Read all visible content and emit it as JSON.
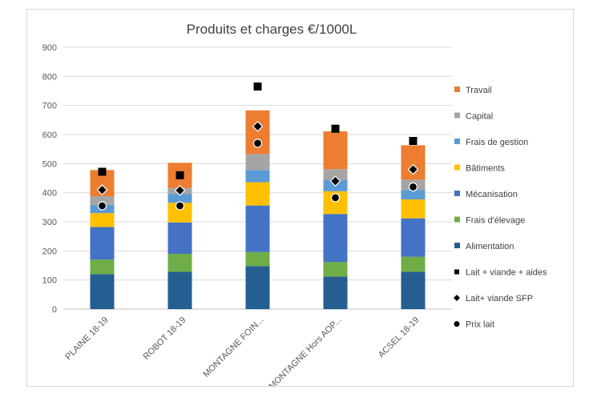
{
  "chart_data": {
    "type": "bar",
    "stacked": true,
    "title": "Produits et charges €/1000L",
    "xlabel": "",
    "ylabel": "",
    "ylim": [
      0,
      900
    ],
    "yticks": [
      0,
      100,
      200,
      300,
      400,
      500,
      600,
      700,
      800,
      900
    ],
    "grid": true,
    "legend_position": "right",
    "categories": [
      "PLAINE   18-19",
      "ROBOT 18-19",
      "MONTAGNE FOIN...",
      "MONTAGNE Hors AOP...",
      "ACSEL 18-19"
    ],
    "series": [
      {
        "name": "Alimentation",
        "color": "#255e91",
        "values": [
          120,
          128,
          148,
          112,
          128
        ]
      },
      {
        "name": "Frais d'élevage",
        "color": "#70ad47",
        "values": [
          50,
          62,
          48,
          50,
          52
        ]
      },
      {
        "name": "Mécanisation",
        "color": "#4472c4",
        "values": [
          112,
          108,
          160,
          165,
          132
        ]
      },
      {
        "name": "Bâtiments",
        "color": "#ffc000",
        "values": [
          48,
          68,
          80,
          78,
          65
        ]
      },
      {
        "name": "Frais de gestion",
        "color": "#5b9bd5",
        "values": [
          28,
          30,
          42,
          38,
          32
        ]
      },
      {
        "name": "Capital",
        "color": "#a5a5a5",
        "values": [
          30,
          20,
          55,
          38,
          36
        ]
      },
      {
        "name": "Travail",
        "color": "#ed7d31",
        "values": [
          90,
          87,
          150,
          130,
          118
        ]
      }
    ],
    "markers": [
      {
        "name": "Lait + viande + aides",
        "shape": "square",
        "values": [
          472,
          460,
          765,
          620,
          578
        ]
      },
      {
        "name": "Lait+ viande SFP",
        "shape": "diamond",
        "values": [
          410,
          408,
          628,
          440,
          480
        ]
      },
      {
        "name": "Prix lait",
        "shape": "circle",
        "values": [
          355,
          355,
          570,
          383,
          420
        ]
      }
    ],
    "legend_order": [
      "Travail",
      "Capital",
      "Frais de gestion",
      "Bâtiments",
      "Mécanisation",
      "Frais d'élevage",
      "Alimentation",
      "Lait + viande + aides",
      "Lait+ viande SFP",
      "Prix lait"
    ]
  }
}
